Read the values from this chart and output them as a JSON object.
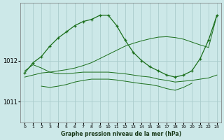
{
  "bg_color": "#cce8e8",
  "grid_color": "#aacccc",
  "line_color": "#1a6e1a",
  "xlim": [
    -0.5,
    23.5
  ],
  "ylim": [
    1010.5,
    1013.4
  ],
  "yticks": [
    1011,
    1012
  ],
  "xticks": [
    0,
    1,
    2,
    3,
    4,
    5,
    6,
    7,
    8,
    9,
    10,
    11,
    12,
    13,
    14,
    15,
    16,
    17,
    18,
    19,
    20,
    21,
    22,
    23
  ],
  "xlabel": "Graphe pression niveau de la mer (hPa)",
  "series": [
    {
      "x": [
        0,
        1,
        2,
        3,
        4,
        5,
        6,
        7,
        8,
        9,
        10,
        11,
        12,
        13,
        14,
        15,
        16,
        17,
        18,
        19,
        20,
        21,
        22,
        23
      ],
      "y": [
        1011.7,
        1011.95,
        1012.1,
        1012.35,
        1012.55,
        1012.7,
        1012.85,
        1012.95,
        1013.0,
        1013.1,
        1013.1,
        1012.85,
        1012.5,
        1012.2,
        1012.0,
        1011.85,
        1011.75,
        1011.65,
        1011.6,
        1011.65,
        1011.75,
        1012.05,
        1012.5,
        1013.1
      ],
      "has_markers": true
    },
    {
      "x": [
        0,
        1,
        2,
        3,
        4,
        5,
        6,
        7,
        8,
        9,
        10,
        11,
        12,
        13,
        14,
        15,
        16,
        17,
        18,
        19,
        20,
        21,
        22,
        23
      ],
      "y": [
        1011.6,
        1011.65,
        1011.7,
        1011.72,
        1011.75,
        1011.78,
        1011.82,
        1011.88,
        1011.95,
        1012.05,
        1012.15,
        1012.25,
        1012.35,
        1012.42,
        1012.48,
        1012.53,
        1012.57,
        1012.58,
        1012.56,
        1012.52,
        1012.45,
        1012.38,
        1012.32,
        1013.1
      ],
      "has_markers": false
    },
    {
      "x": [
        0,
        1,
        2,
        3,
        4,
        5,
        6,
        7,
        8,
        9,
        10,
        11,
        12,
        13,
        14,
        15,
        16,
        17,
        18,
        19,
        20,
        21,
        22,
        23
      ],
      "y": [
        1011.75,
        1011.9,
        1011.82,
        1011.72,
        1011.68,
        1011.68,
        1011.7,
        1011.72,
        1011.72,
        1011.72,
        1011.72,
        1011.7,
        1011.68,
        1011.65,
        1011.62,
        1011.6,
        1011.55,
        1011.52,
        1011.48,
        1011.5,
        1011.52,
        1011.55,
        1011.58,
        1011.65
      ],
      "has_markers": false
    },
    {
      "x": [
        2,
        3,
        4,
        5,
        6,
        7,
        8,
        9,
        10,
        11,
        12,
        13,
        14,
        15,
        16,
        17,
        18,
        19,
        20
      ],
      "y": [
        1011.38,
        1011.35,
        1011.38,
        1011.42,
        1011.48,
        1011.52,
        1011.55,
        1011.55,
        1011.55,
        1011.53,
        1011.5,
        1011.47,
        1011.44,
        1011.42,
        1011.38,
        1011.32,
        1011.28,
        1011.35,
        1011.45
      ],
      "has_markers": false
    }
  ]
}
